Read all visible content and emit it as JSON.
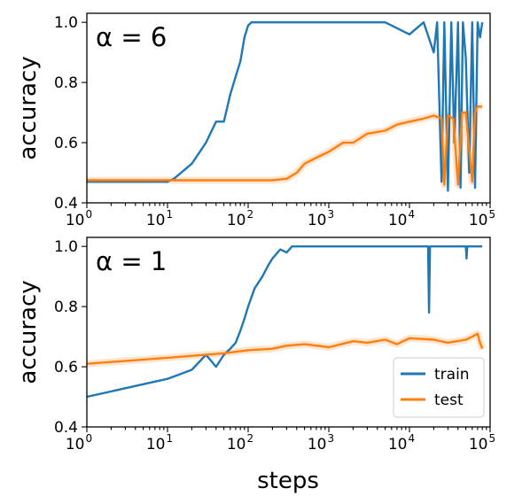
{
  "figure": {
    "xlabel": "steps",
    "ylabel": "accuracy"
  },
  "legend": {
    "entries": [
      {
        "name": "train",
        "color": "#1f77b4"
      },
      {
        "name": "test",
        "color": "#ff7f0e"
      }
    ],
    "placement": "lower-right of bottom panel"
  },
  "chart_data": [
    {
      "type": "line",
      "title": "α = 6",
      "xscale": "log",
      "xlim": [
        1,
        100000
      ],
      "ylim": [
        0.4,
        1.03
      ],
      "ylabel": "accuracy",
      "xticks": [
        {
          "base": "10",
          "exp": "0"
        },
        {
          "base": "10",
          "exp": "1"
        },
        {
          "base": "10",
          "exp": "2"
        },
        {
          "base": "10",
          "exp": "3"
        },
        {
          "base": "10",
          "exp": "4"
        },
        {
          "base": "10",
          "exp": "5"
        }
      ],
      "yticks": [
        "0.4",
        "0.6",
        "0.8",
        "1.0"
      ],
      "series": [
        {
          "name": "train",
          "color": "#1f77b4",
          "x": [
            1,
            5,
            10,
            12,
            20,
            30,
            40,
            50,
            60,
            70,
            80,
            90,
            100,
            110,
            130,
            200,
            1000,
            5000,
            10000,
            15000,
            20000,
            22000,
            25000,
            27000,
            30000,
            33000,
            36000,
            40000,
            43000,
            46000,
            50000,
            55000,
            60000,
            65000,
            70000,
            75000,
            80000
          ],
          "y": [
            0.47,
            0.47,
            0.47,
            0.48,
            0.53,
            0.6,
            0.67,
            0.67,
            0.76,
            0.82,
            0.87,
            0.95,
            0.99,
            1.0,
            1.0,
            1.0,
            1.0,
            1.0,
            0.96,
            1.0,
            0.9,
            1.0,
            0.47,
            1.0,
            0.44,
            1.0,
            0.6,
            1.0,
            0.45,
            1.0,
            0.88,
            0.5,
            1.0,
            0.45,
            1.0,
            0.95,
            1.0
          ]
        },
        {
          "name": "test",
          "color": "#ff7f0e",
          "x": [
            1,
            10,
            50,
            100,
            200,
            300,
            400,
            500,
            700,
            1000,
            1500,
            2000,
            3000,
            5000,
            7000,
            10000,
            15000,
            20000,
            25000,
            27000,
            30000,
            35000,
            40000,
            45000,
            50000,
            60000,
            65000,
            70000,
            80000
          ],
          "y": [
            0.475,
            0.475,
            0.475,
            0.475,
            0.475,
            0.48,
            0.5,
            0.53,
            0.55,
            0.57,
            0.6,
            0.6,
            0.63,
            0.64,
            0.66,
            0.67,
            0.68,
            0.69,
            0.68,
            0.46,
            0.69,
            0.68,
            0.46,
            0.7,
            0.7,
            0.47,
            0.7,
            0.72,
            0.72
          ]
        }
      ]
    },
    {
      "type": "line",
      "title": "α = 1",
      "xscale": "log",
      "xlim": [
        1,
        100000
      ],
      "ylim": [
        0.4,
        1.03
      ],
      "xlabel": "steps",
      "ylabel": "accuracy",
      "xticks": [
        {
          "base": "10",
          "exp": "0"
        },
        {
          "base": "10",
          "exp": "1"
        },
        {
          "base": "10",
          "exp": "2"
        },
        {
          "base": "10",
          "exp": "3"
        },
        {
          "base": "10",
          "exp": "4"
        },
        {
          "base": "10",
          "exp": "5"
        }
      ],
      "yticks": [
        "0.4",
        "0.6",
        "0.8",
        "1.0"
      ],
      "series": [
        {
          "name": "train",
          "color": "#1f77b4",
          "x": [
            1,
            10,
            20,
            30,
            40,
            50,
            60,
            70,
            80,
            90,
            100,
            120,
            150,
            180,
            200,
            250,
            300,
            350,
            400,
            1000,
            10000,
            17000,
            17500,
            18000,
            50000,
            51000,
            52000,
            80000
          ],
          "y": [
            0.5,
            0.56,
            0.59,
            0.64,
            0.6,
            0.64,
            0.66,
            0.68,
            0.72,
            0.76,
            0.8,
            0.86,
            0.9,
            0.94,
            0.96,
            0.99,
            0.98,
            1.0,
            1.0,
            1.0,
            1.0,
            1.0,
            0.78,
            1.0,
            1.0,
            0.96,
            1.0,
            1.0
          ]
        },
        {
          "name": "test",
          "color": "#ff7f0e",
          "x": [
            1,
            10,
            50,
            100,
            200,
            300,
            500,
            1000,
            2000,
            3000,
            5000,
            7000,
            10000,
            20000,
            30000,
            50000,
            60000,
            70000,
            75000,
            80000
          ],
          "y": [
            0.61,
            0.63,
            0.645,
            0.655,
            0.66,
            0.67,
            0.675,
            0.665,
            0.685,
            0.68,
            0.69,
            0.675,
            0.695,
            0.69,
            0.68,
            0.69,
            0.7,
            0.71,
            0.68,
            0.66
          ]
        }
      ]
    }
  ]
}
